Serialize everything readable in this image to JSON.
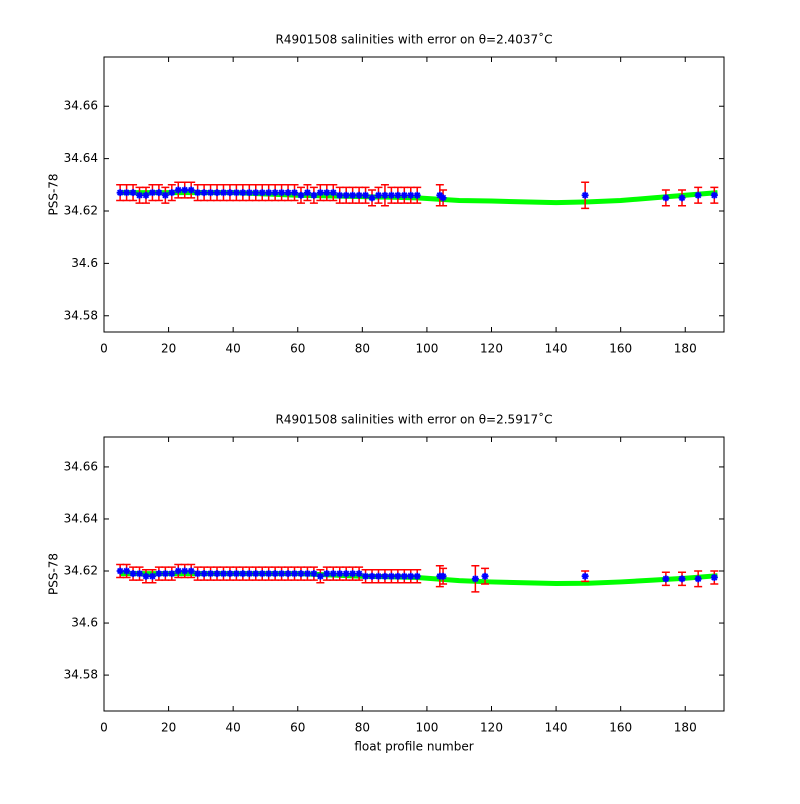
{
  "chart_data": [
    {
      "type": "errorbar",
      "title": "R4901508 salinities with error on θ=2.4037˚C",
      "ylabel": "PSS-78",
      "xlim": [
        0,
        192
      ],
      "xticks": [
        0,
        20,
        40,
        60,
        80,
        100,
        120,
        140,
        160,
        180
      ],
      "ylim": [
        34.5738,
        34.6788
      ],
      "yticks": [
        34.58,
        34.6,
        34.62,
        34.64,
        34.66
      ],
      "fit": {
        "color": "#00ff00",
        "x": [
          5,
          20,
          40,
          60,
          80,
          97,
          110,
          120,
          130,
          140,
          150,
          160,
          170,
          180,
          190
        ],
        "values": [
          34.627,
          34.627,
          34.627,
          34.626,
          34.6255,
          34.625,
          34.624,
          34.6238,
          34.6235,
          34.6232,
          34.6235,
          34.624,
          34.625,
          34.626,
          34.627
        ]
      },
      "series": [
        {
          "color": "#0000ff",
          "error_color": "#ff0000",
          "x": [
            5,
            7,
            9,
            11,
            13,
            15,
            17,
            19,
            21,
            23,
            25,
            27,
            29,
            31,
            33,
            35,
            37,
            39,
            41,
            43,
            45,
            47,
            49,
            51,
            53,
            55,
            57,
            59,
            61,
            63,
            65,
            67,
            69,
            71,
            73,
            75,
            77,
            79,
            81,
            83,
            85,
            87,
            89,
            91,
            93,
            95,
            97,
            104,
            105,
            149,
            174,
            179,
            184,
            189
          ],
          "values": [
            34.627,
            34.627,
            34.627,
            34.626,
            34.626,
            34.627,
            34.627,
            34.626,
            34.627,
            34.628,
            34.628,
            34.628,
            34.627,
            34.627,
            34.627,
            34.627,
            34.627,
            34.627,
            34.627,
            34.627,
            34.627,
            34.627,
            34.627,
            34.627,
            34.627,
            34.627,
            34.627,
            34.627,
            34.626,
            34.627,
            34.626,
            34.627,
            34.627,
            34.627,
            34.626,
            34.626,
            34.626,
            34.626,
            34.626,
            34.625,
            34.626,
            34.626,
            34.626,
            34.626,
            34.626,
            34.626,
            34.626,
            34.626,
            34.625,
            34.626,
            34.625,
            34.625,
            34.626,
            34.626
          ],
          "errors": [
            0.003,
            0.003,
            0.003,
            0.003,
            0.003,
            0.003,
            0.003,
            0.003,
            0.003,
            0.003,
            0.003,
            0.003,
            0.003,
            0.003,
            0.003,
            0.003,
            0.003,
            0.003,
            0.003,
            0.003,
            0.003,
            0.003,
            0.003,
            0.003,
            0.003,
            0.003,
            0.003,
            0.003,
            0.003,
            0.003,
            0.003,
            0.003,
            0.003,
            0.003,
            0.003,
            0.003,
            0.003,
            0.003,
            0.003,
            0.003,
            0.003,
            0.004,
            0.003,
            0.003,
            0.003,
            0.003,
            0.003,
            0.004,
            0.003,
            0.005,
            0.003,
            0.003,
            0.003,
            0.003
          ]
        }
      ]
    },
    {
      "type": "errorbar",
      "title": "R4901508 salinities with error on θ=2.5917˚C",
      "ylabel": "PSS-78",
      "xlabel": "float profile number",
      "xlim": [
        0,
        192
      ],
      "xticks": [
        0,
        20,
        40,
        60,
        80,
        100,
        120,
        140,
        160,
        180
      ],
      "ylim": [
        34.5662,
        34.6715
      ],
      "yticks": [
        34.58,
        34.6,
        34.62,
        34.64,
        34.66
      ],
      "fit": {
        "color": "#00ff00",
        "x": [
          5,
          20,
          40,
          60,
          80,
          97,
          110,
          120,
          130,
          140,
          150,
          160,
          170,
          180,
          190
        ],
        "values": [
          34.619,
          34.619,
          34.619,
          34.619,
          34.618,
          34.6175,
          34.6163,
          34.6158,
          34.6155,
          34.6152,
          34.6153,
          34.6158,
          34.6165,
          34.6172,
          34.6182
        ]
      },
      "series": [
        {
          "color": "#0000ff",
          "error_color": "#ff0000",
          "x": [
            5,
            7,
            9,
            11,
            13,
            15,
            17,
            19,
            21,
            23,
            25,
            27,
            29,
            31,
            33,
            35,
            37,
            39,
            41,
            43,
            45,
            47,
            49,
            51,
            53,
            55,
            57,
            59,
            61,
            63,
            65,
            67,
            69,
            71,
            73,
            75,
            77,
            79,
            81,
            83,
            85,
            87,
            89,
            91,
            93,
            95,
            97,
            104,
            105,
            115,
            118,
            149,
            174,
            179,
            184,
            189
          ],
          "values": [
            34.62,
            34.62,
            34.619,
            34.619,
            34.618,
            34.618,
            34.619,
            34.619,
            34.619,
            34.62,
            34.62,
            34.62,
            34.619,
            34.619,
            34.619,
            34.619,
            34.619,
            34.619,
            34.619,
            34.619,
            34.619,
            34.619,
            34.619,
            34.619,
            34.619,
            34.619,
            34.619,
            34.619,
            34.619,
            34.619,
            34.619,
            34.618,
            34.619,
            34.619,
            34.619,
            34.619,
            34.619,
            34.619,
            34.618,
            34.618,
            34.618,
            34.618,
            34.618,
            34.618,
            34.618,
            34.618,
            34.618,
            34.618,
            34.618,
            34.617,
            34.618,
            34.618,
            34.617,
            34.617,
            34.617,
            34.6175
          ],
          "errors": [
            0.0025,
            0.0025,
            0.0025,
            0.0025,
            0.0025,
            0.0025,
            0.0025,
            0.0025,
            0.0025,
            0.0025,
            0.0025,
            0.0025,
            0.0025,
            0.0025,
            0.0025,
            0.0025,
            0.0025,
            0.0025,
            0.0025,
            0.0025,
            0.0025,
            0.0025,
            0.0025,
            0.0025,
            0.0025,
            0.0025,
            0.0025,
            0.0025,
            0.0025,
            0.0025,
            0.0025,
            0.0025,
            0.0025,
            0.0025,
            0.0025,
            0.0025,
            0.0025,
            0.0025,
            0.0025,
            0.0025,
            0.0025,
            0.0025,
            0.0025,
            0.0025,
            0.0025,
            0.0025,
            0.0025,
            0.004,
            0.003,
            0.005,
            0.003,
            0.002,
            0.0025,
            0.0025,
            0.003,
            0.0025
          ]
        }
      ]
    }
  ]
}
